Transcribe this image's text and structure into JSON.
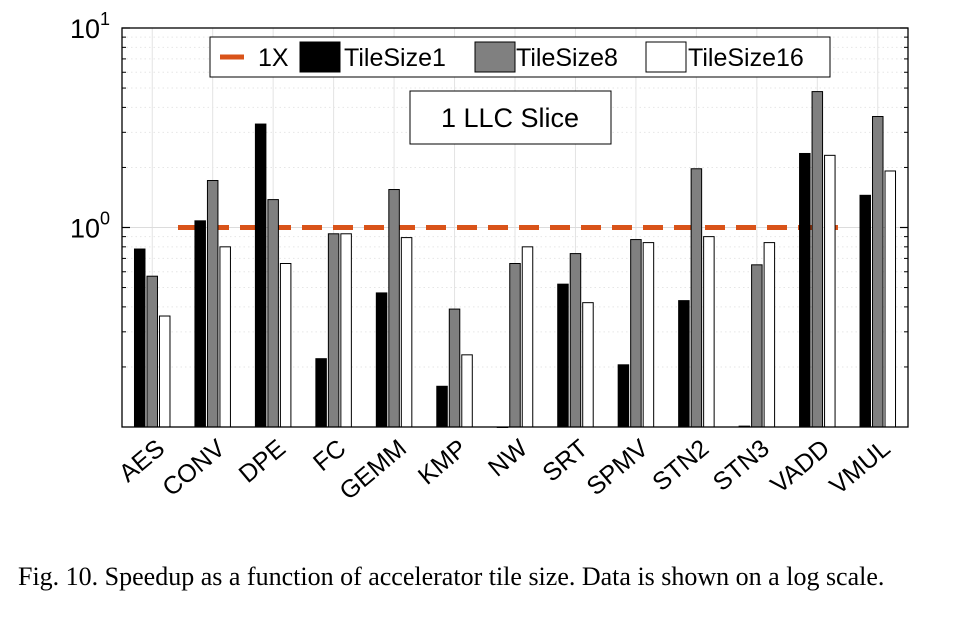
{
  "chart_data": {
    "type": "bar",
    "yscale": "log",
    "ylim": [
      0.1,
      10
    ],
    "yticks": [
      {
        "value": 1,
        "base": "10",
        "exp": "0"
      },
      {
        "value": 10,
        "base": "10",
        "exp": "1"
      }
    ],
    "grid": true,
    "legend_position": "top",
    "categories": [
      "AES",
      "CONV",
      "DPE",
      "FC",
      "GEMM",
      "KMP",
      "NW",
      "SRT",
      "SPMV",
      "STN2",
      "STN3",
      "VADD",
      "VMUL"
    ],
    "reference_line": {
      "name": "1X",
      "value": 1,
      "color": "#d95319",
      "style": "dashed"
    },
    "series": [
      {
        "name": "TileSize1",
        "color": "#000000",
        "values": [
          0.78,
          1.08,
          3.3,
          0.22,
          0.47,
          0.16,
          0.1,
          0.52,
          0.205,
          0.43,
          0.101,
          2.35,
          1.45
        ]
      },
      {
        "name": "TileSize8",
        "color": "#808080",
        "values": [
          0.57,
          1.72,
          1.38,
          0.93,
          1.55,
          0.39,
          0.66,
          0.74,
          0.87,
          1.97,
          0.65,
          4.8,
          3.6
        ]
      },
      {
        "name": "TileSize16",
        "color": "#ffffff",
        "values": [
          0.36,
          0.8,
          0.66,
          0.93,
          0.89,
          0.23,
          0.8,
          0.42,
          0.84,
          0.9,
          0.84,
          2.3,
          1.92
        ]
      }
    ],
    "annotation": "1 LLC Slice"
  },
  "caption": "Fig. 10.  Speedup as a function of accelerator tile size. Data is shown on a log scale."
}
